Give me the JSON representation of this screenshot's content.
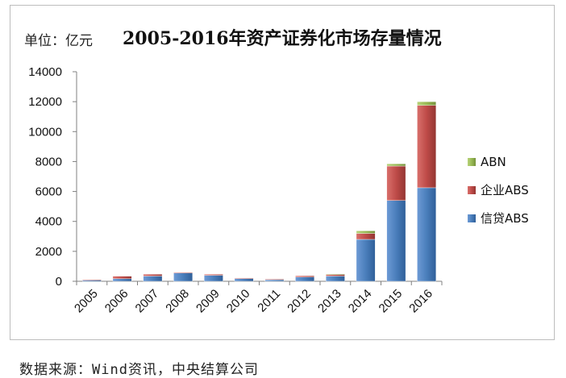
{
  "chart_data": {
    "type": "bar",
    "stacked": true,
    "title": "2005-2016年资产证券化市场存量情况",
    "unit_label": "单位：亿元",
    "source": "数据来源：Wind资讯，中央结算公司",
    "categories": [
      "2005",
      "2006",
      "2007",
      "2008",
      "2009",
      "2010",
      "2011",
      "2012",
      "2013",
      "2014",
      "2015",
      "2016"
    ],
    "ylim": [
      0,
      14000
    ],
    "yticks": [
      0,
      2000,
      4000,
      6000,
      8000,
      10000,
      12000,
      14000
    ],
    "grid": false,
    "legend_position": "right",
    "series": [
      {
        "name": "信贷ABS",
        "color": "#4a7ebb",
        "values": [
          80,
          170,
          350,
          560,
          400,
          180,
          120,
          280,
          350,
          2800,
          5400,
          6250
        ]
      },
      {
        "name": "企业ABS",
        "color": "#be4b48",
        "values": [
          40,
          170,
          120,
          40,
          70,
          40,
          20,
          90,
          120,
          400,
          2300,
          5500
        ]
      },
      {
        "name": "ABN",
        "color": "#98b954",
        "values": [
          0,
          0,
          0,
          0,
          0,
          0,
          0,
          0,
          20,
          170,
          150,
          250
        ]
      }
    ]
  }
}
